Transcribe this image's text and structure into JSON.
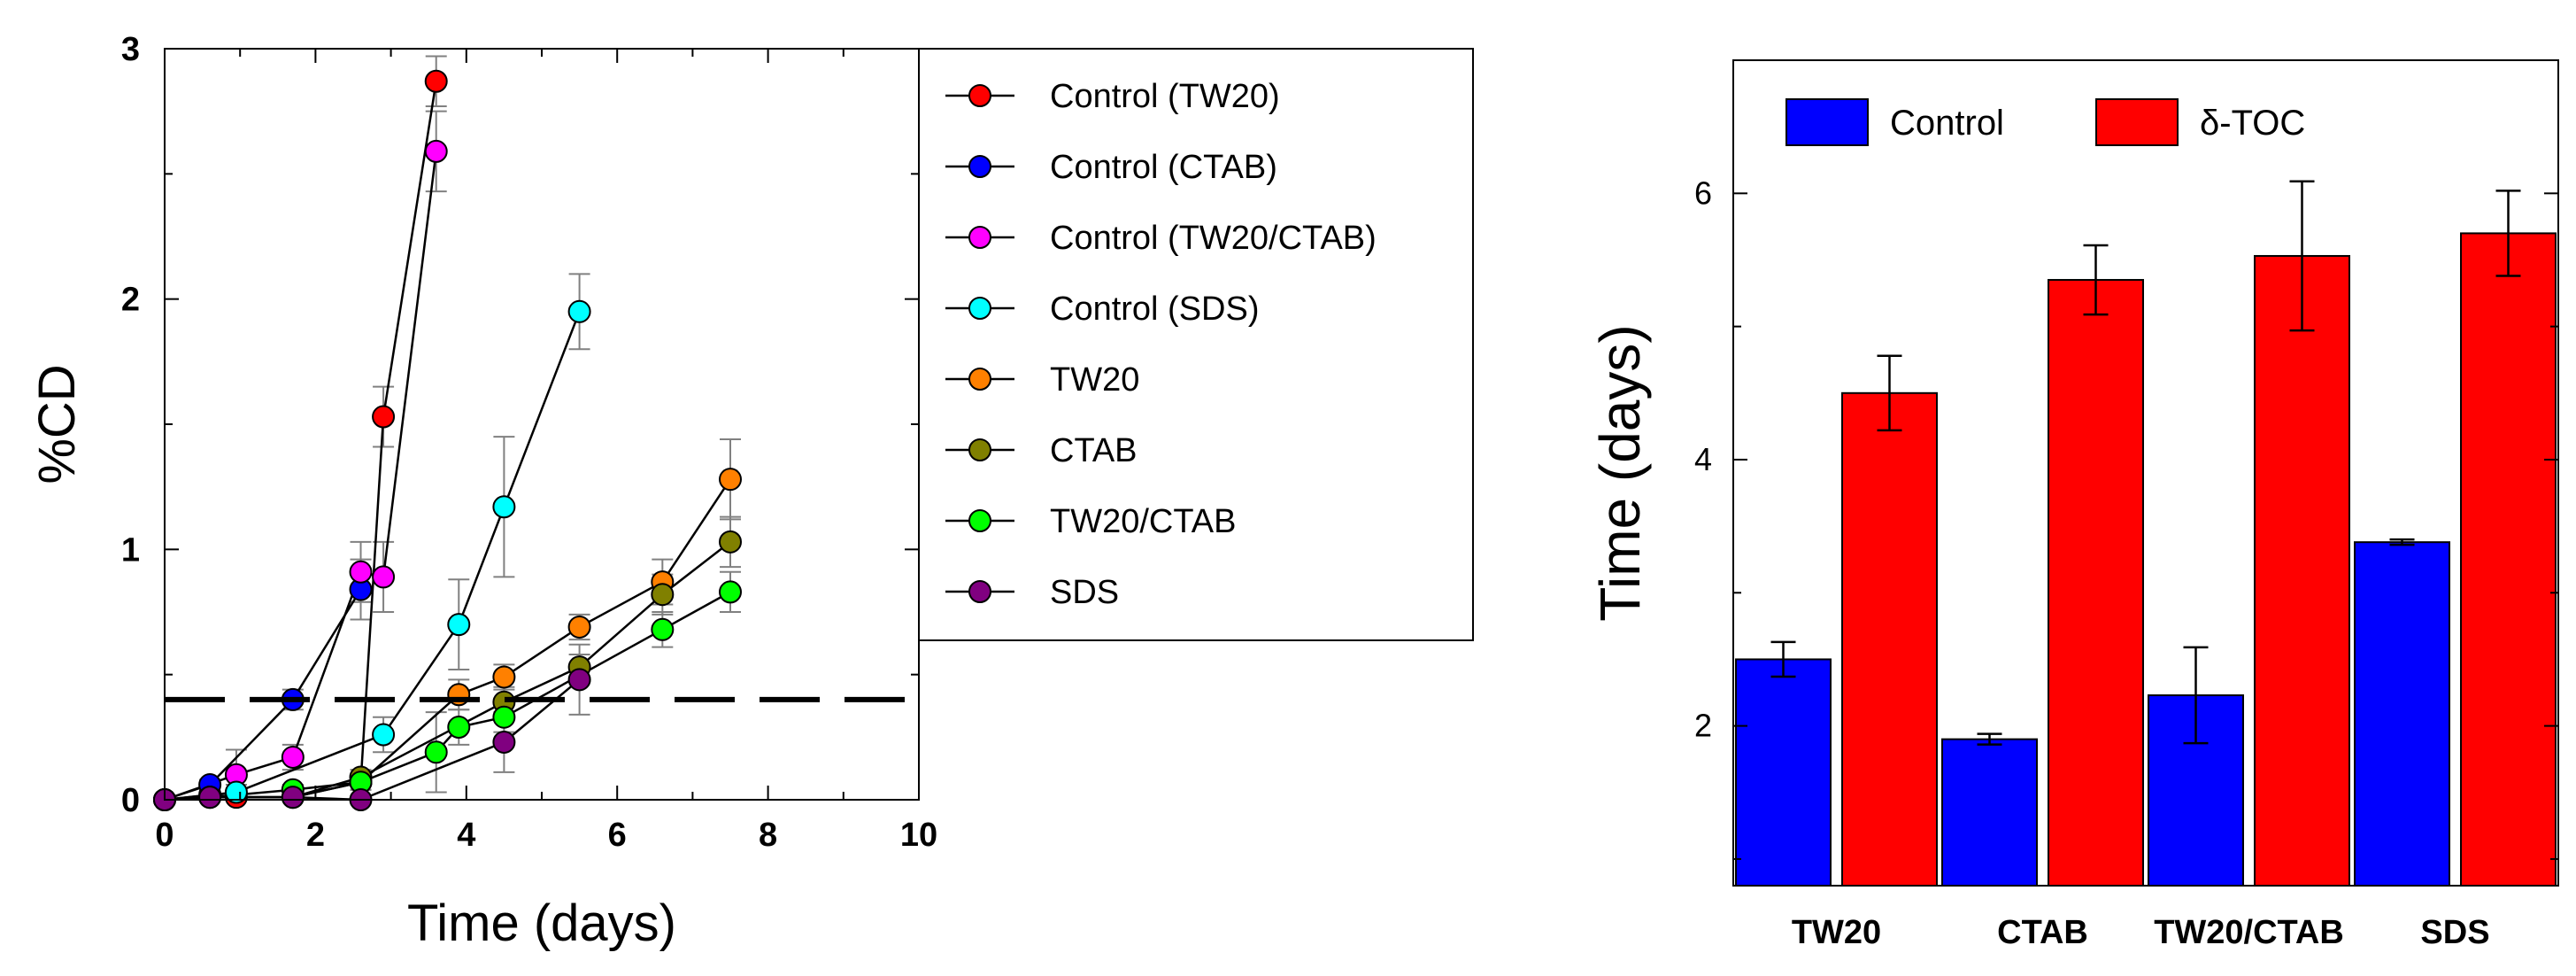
{
  "chart_data": [
    {
      "type": "line",
      "xlabel": "Time (days)",
      "ylabel": "%CD",
      "xlim": [
        0,
        10
      ],
      "ylim": [
        0,
        3
      ],
      "x_ticks": [
        "0",
        "2",
        "4",
        "6",
        "8",
        "10"
      ],
      "y_ticks": [
        "0",
        "1",
        "2",
        "3"
      ],
      "grid": false,
      "legend_position": "top-right",
      "threshold_line": 0.4,
      "series": [
        {
          "name": "Control (TW20)",
          "color": "#ff0000",
          "x": [
            0,
            0.6,
            0.95,
            1.7,
            2.6,
            2.9,
            3.6
          ],
          "y": [
            0,
            0.02,
            0.01,
            0.01,
            0.07,
            1.53,
            2.87
          ],
          "err": [
            0,
            0,
            0,
            0,
            0.03,
            0.12,
            0.1
          ]
        },
        {
          "name": "Control (CTAB)",
          "color": "#0000ff",
          "x": [
            0,
            0.6,
            1.7,
            2.6
          ],
          "y": [
            0,
            0.06,
            0.4,
            0.84
          ],
          "err": [
            0,
            0.02,
            0.04,
            0.12
          ]
        },
        {
          "name": "Control (TW20/CTAB)",
          "color": "#ff00ff",
          "x": [
            0,
            0.95,
            1.7,
            2.6,
            2.9,
            3.6
          ],
          "y": [
            0,
            0.1,
            0.17,
            0.91,
            0.89,
            2.59
          ],
          "err": [
            0,
            0.1,
            0.05,
            0.12,
            0.14,
            0.16
          ]
        },
        {
          "name": "Control (SDS)",
          "color": "#00ffff",
          "x": [
            0,
            0.95,
            2.9,
            3.9,
            4.5,
            5.5
          ],
          "y": [
            0,
            0.03,
            0.26,
            0.7,
            1.17,
            1.95
          ],
          "err": [
            0,
            0.03,
            0.07,
            0.18,
            0.28,
            0.15
          ]
        },
        {
          "name": "TW20",
          "color": "#ff8000",
          "x": [
            0,
            0.6,
            1.7,
            2.6,
            3.9,
            4.5,
            5.5,
            6.6,
            7.5
          ],
          "y": [
            0,
            0.01,
            0.01,
            0.07,
            0.42,
            0.49,
            0.69,
            0.87,
            1.28
          ],
          "err": [
            0,
            0,
            0,
            0.03,
            0.06,
            0.05,
            0.05,
            0.09,
            0.16
          ]
        },
        {
          "name": "CTAB",
          "color": "#808000",
          "x": [
            0,
            0.6,
            1.7,
            2.6,
            4.5,
            5.5,
            6.6,
            7.5
          ],
          "y": [
            0,
            0.01,
            0.01,
            0.09,
            0.39,
            0.53,
            0.82,
            1.03
          ],
          "err": [
            0,
            0,
            0,
            0.03,
            0.06,
            0.05,
            0.08,
            0.1
          ]
        },
        {
          "name": "TW20/CTAB",
          "color": "#00ff00",
          "x": [
            0,
            0.6,
            1.7,
            2.6,
            3.6,
            3.9,
            4.5,
            6.6,
            7.5
          ],
          "y": [
            0,
            0.01,
            0.04,
            0.07,
            0.19,
            0.29,
            0.33,
            0.68,
            0.83
          ],
          "err": [
            0,
            0,
            0.02,
            0.03,
            0.16,
            0.07,
            0.06,
            0.07,
            0.08
          ]
        },
        {
          "name": "SDS",
          "color": "#800080",
          "x": [
            0,
            0.6,
            1.7,
            2.6,
            4.5,
            5.5
          ],
          "y": [
            0,
            0.01,
            0.01,
            0.0,
            0.23,
            0.48
          ],
          "err": [
            0,
            0,
            0,
            0,
            0.12,
            0.14
          ]
        }
      ]
    },
    {
      "type": "bar",
      "xlabel": "",
      "ylabel": "Time (days)",
      "ylim": [
        0.8,
        7.0
      ],
      "y_ticks": [
        "2",
        "4",
        "6"
      ],
      "grid": false,
      "legend_position": "top-left",
      "categories": [
        "TW20",
        "CTAB",
        "TW20/CTAB",
        "SDS"
      ],
      "series": [
        {
          "name": "Control",
          "color": "#0000ff",
          "values": [
            2.5,
            1.9,
            2.23,
            3.38
          ],
          "err": [
            0.13,
            0.04,
            0.36,
            0.02
          ]
        },
        {
          "name": "δ-TOC",
          "color": "#ff0000",
          "values": [
            4.5,
            5.35,
            5.53,
            5.7
          ],
          "err": [
            0.28,
            0.26,
            0.56,
            0.32
          ]
        }
      ]
    }
  ]
}
